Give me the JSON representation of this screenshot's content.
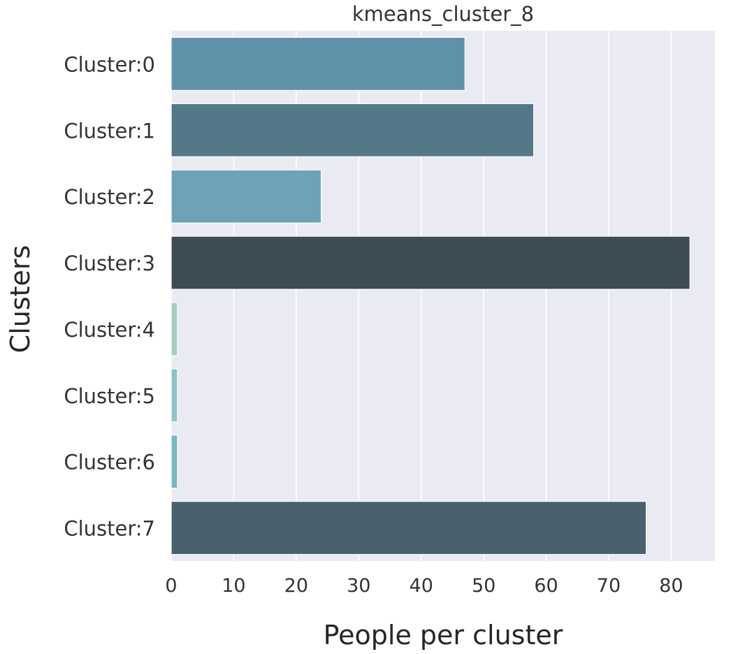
{
  "chart_data": {
    "type": "bar",
    "orientation": "horizontal",
    "title": "kmeans_cluster_8",
    "xlabel": "People per cluster",
    "ylabel": "Clusters",
    "categories": [
      "Cluster:0",
      "Cluster:1",
      "Cluster:2",
      "Cluster:3",
      "Cluster:4",
      "Cluster:5",
      "Cluster:6",
      "Cluster:7"
    ],
    "values": [
      47,
      58,
      24,
      83,
      1,
      1,
      1,
      76
    ],
    "bar_colors": [
      "#5f91a8",
      "#537988",
      "#6ea3b7",
      "#3d4b52",
      "#a6cdc2",
      "#8fc3c5",
      "#7cb6c1",
      "#4a606e"
    ],
    "xlim": [
      0,
      87
    ],
    "xticks": [
      0,
      10,
      20,
      30,
      40,
      50,
      60,
      70,
      80
    ],
    "grid": true,
    "background_color": "#eaeaf2"
  }
}
